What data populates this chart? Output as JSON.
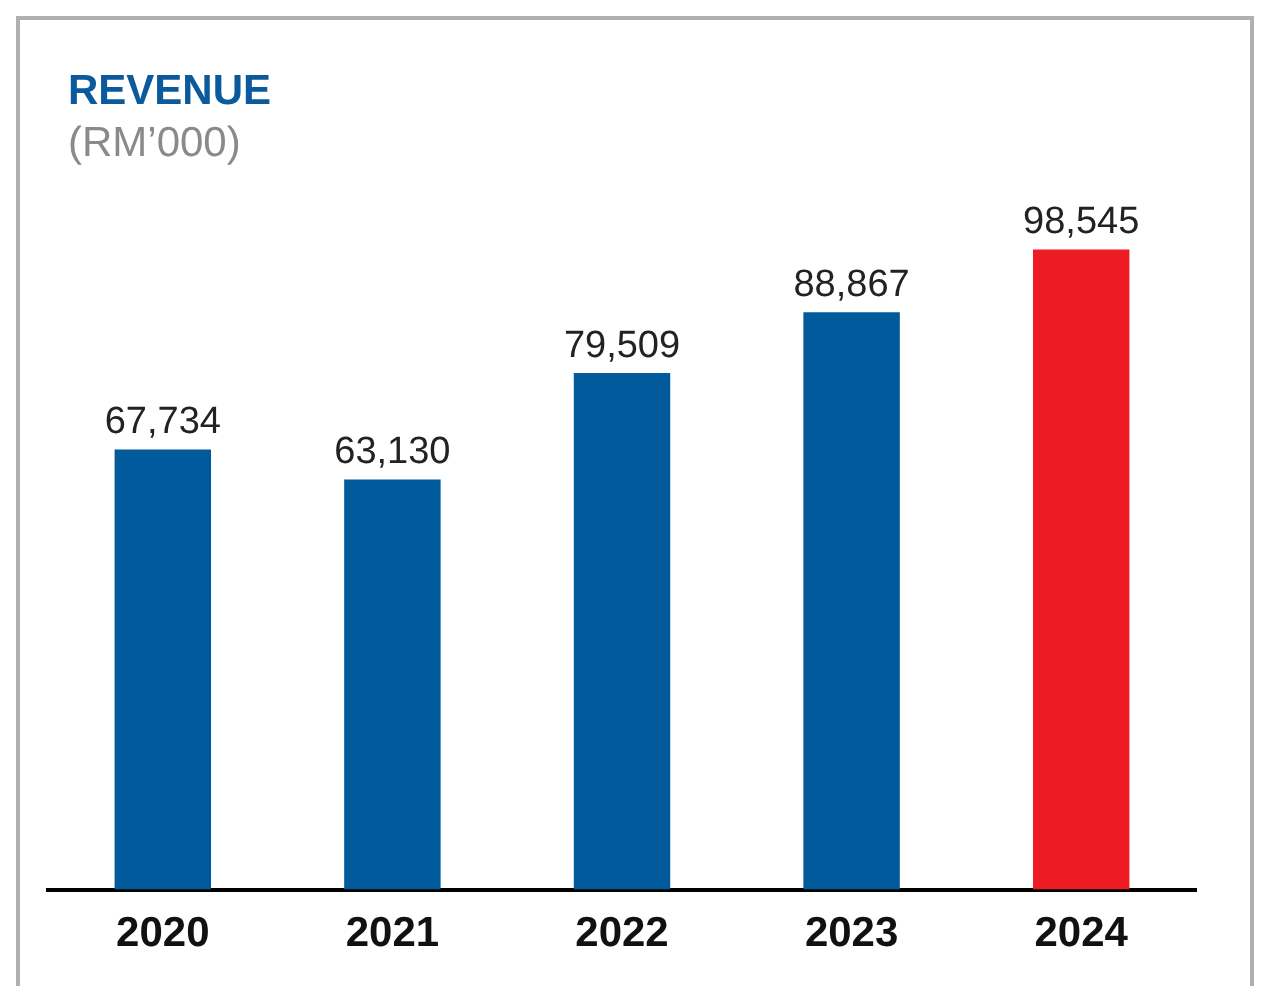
{
  "chart_data": {
    "type": "bar",
    "title": "REVENUE",
    "subtitle": "(RM’000)",
    "categories": [
      "2020",
      "2021",
      "2022",
      "2023",
      "2024"
    ],
    "values": [
      67734,
      63130,
      79509,
      88867,
      98545
    ],
    "value_labels": [
      "67,734",
      "63,130",
      "79,509",
      "88,867",
      "98,545"
    ],
    "colors": [
      "#005a9c",
      "#005a9c",
      "#005a9c",
      "#005a9c",
      "#ed1c24"
    ],
    "grid": false,
    "legend": false
  }
}
